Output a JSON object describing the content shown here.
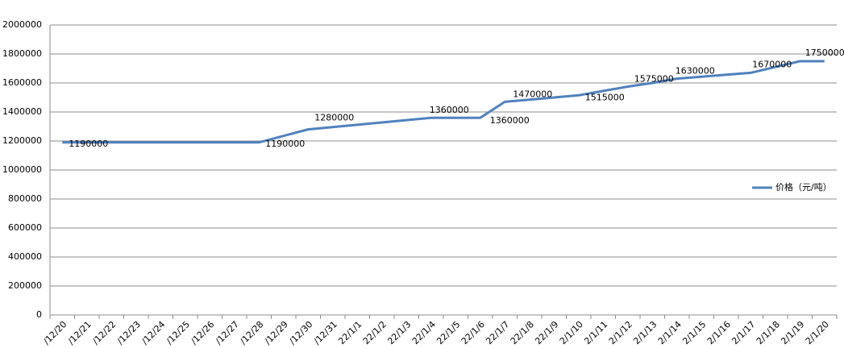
{
  "chart_data": {
    "type": "line",
    "categories": [
      "/12/20",
      "/12/21",
      "/12/22",
      "/12/23",
      "/12/24",
      "/12/25",
      "/12/26",
      "/12/27",
      "/12/28",
      "/12/29",
      "/12/30",
      "/12/31",
      "22/1/1",
      "22/1/2",
      "22/1/3",
      "22/1/4",
      "22/1/5",
      "22/1/6",
      "22/1/7",
      "22/1/8",
      "22/1/9",
      "2/1/10",
      "2/1/11",
      "2/1/12",
      "2/1/13",
      "2/1/14",
      "2/1/15",
      "2/1/16",
      "2/1/17",
      "2/1/18",
      "2/1/19",
      "2/1/20"
    ],
    "series": [
      {
        "name": "价格（元/吨）",
        "color": "#4f81bd",
        "values": [
          1190000,
          1190000,
          1190000,
          1190000,
          1190000,
          1190000,
          1190000,
          1190000,
          1190000,
          1235000,
          1280000,
          1296000,
          1312000,
          1328000,
          1344000,
          1360000,
          1360000,
          1360000,
          1470000,
          1485000,
          1500000,
          1515000,
          1545000,
          1575000,
          1600000,
          1630000,
          1643000,
          1657000,
          1670000,
          1710000,
          1750000,
          1750000
        ]
      }
    ],
    "ylim": [
      0,
      2000000
    ],
    "yticks": [
      0,
      200000,
      400000,
      600000,
      800000,
      1000000,
      1200000,
      1400000,
      1600000,
      1800000,
      2000000
    ],
    "grid": true,
    "legend": "right"
  }
}
